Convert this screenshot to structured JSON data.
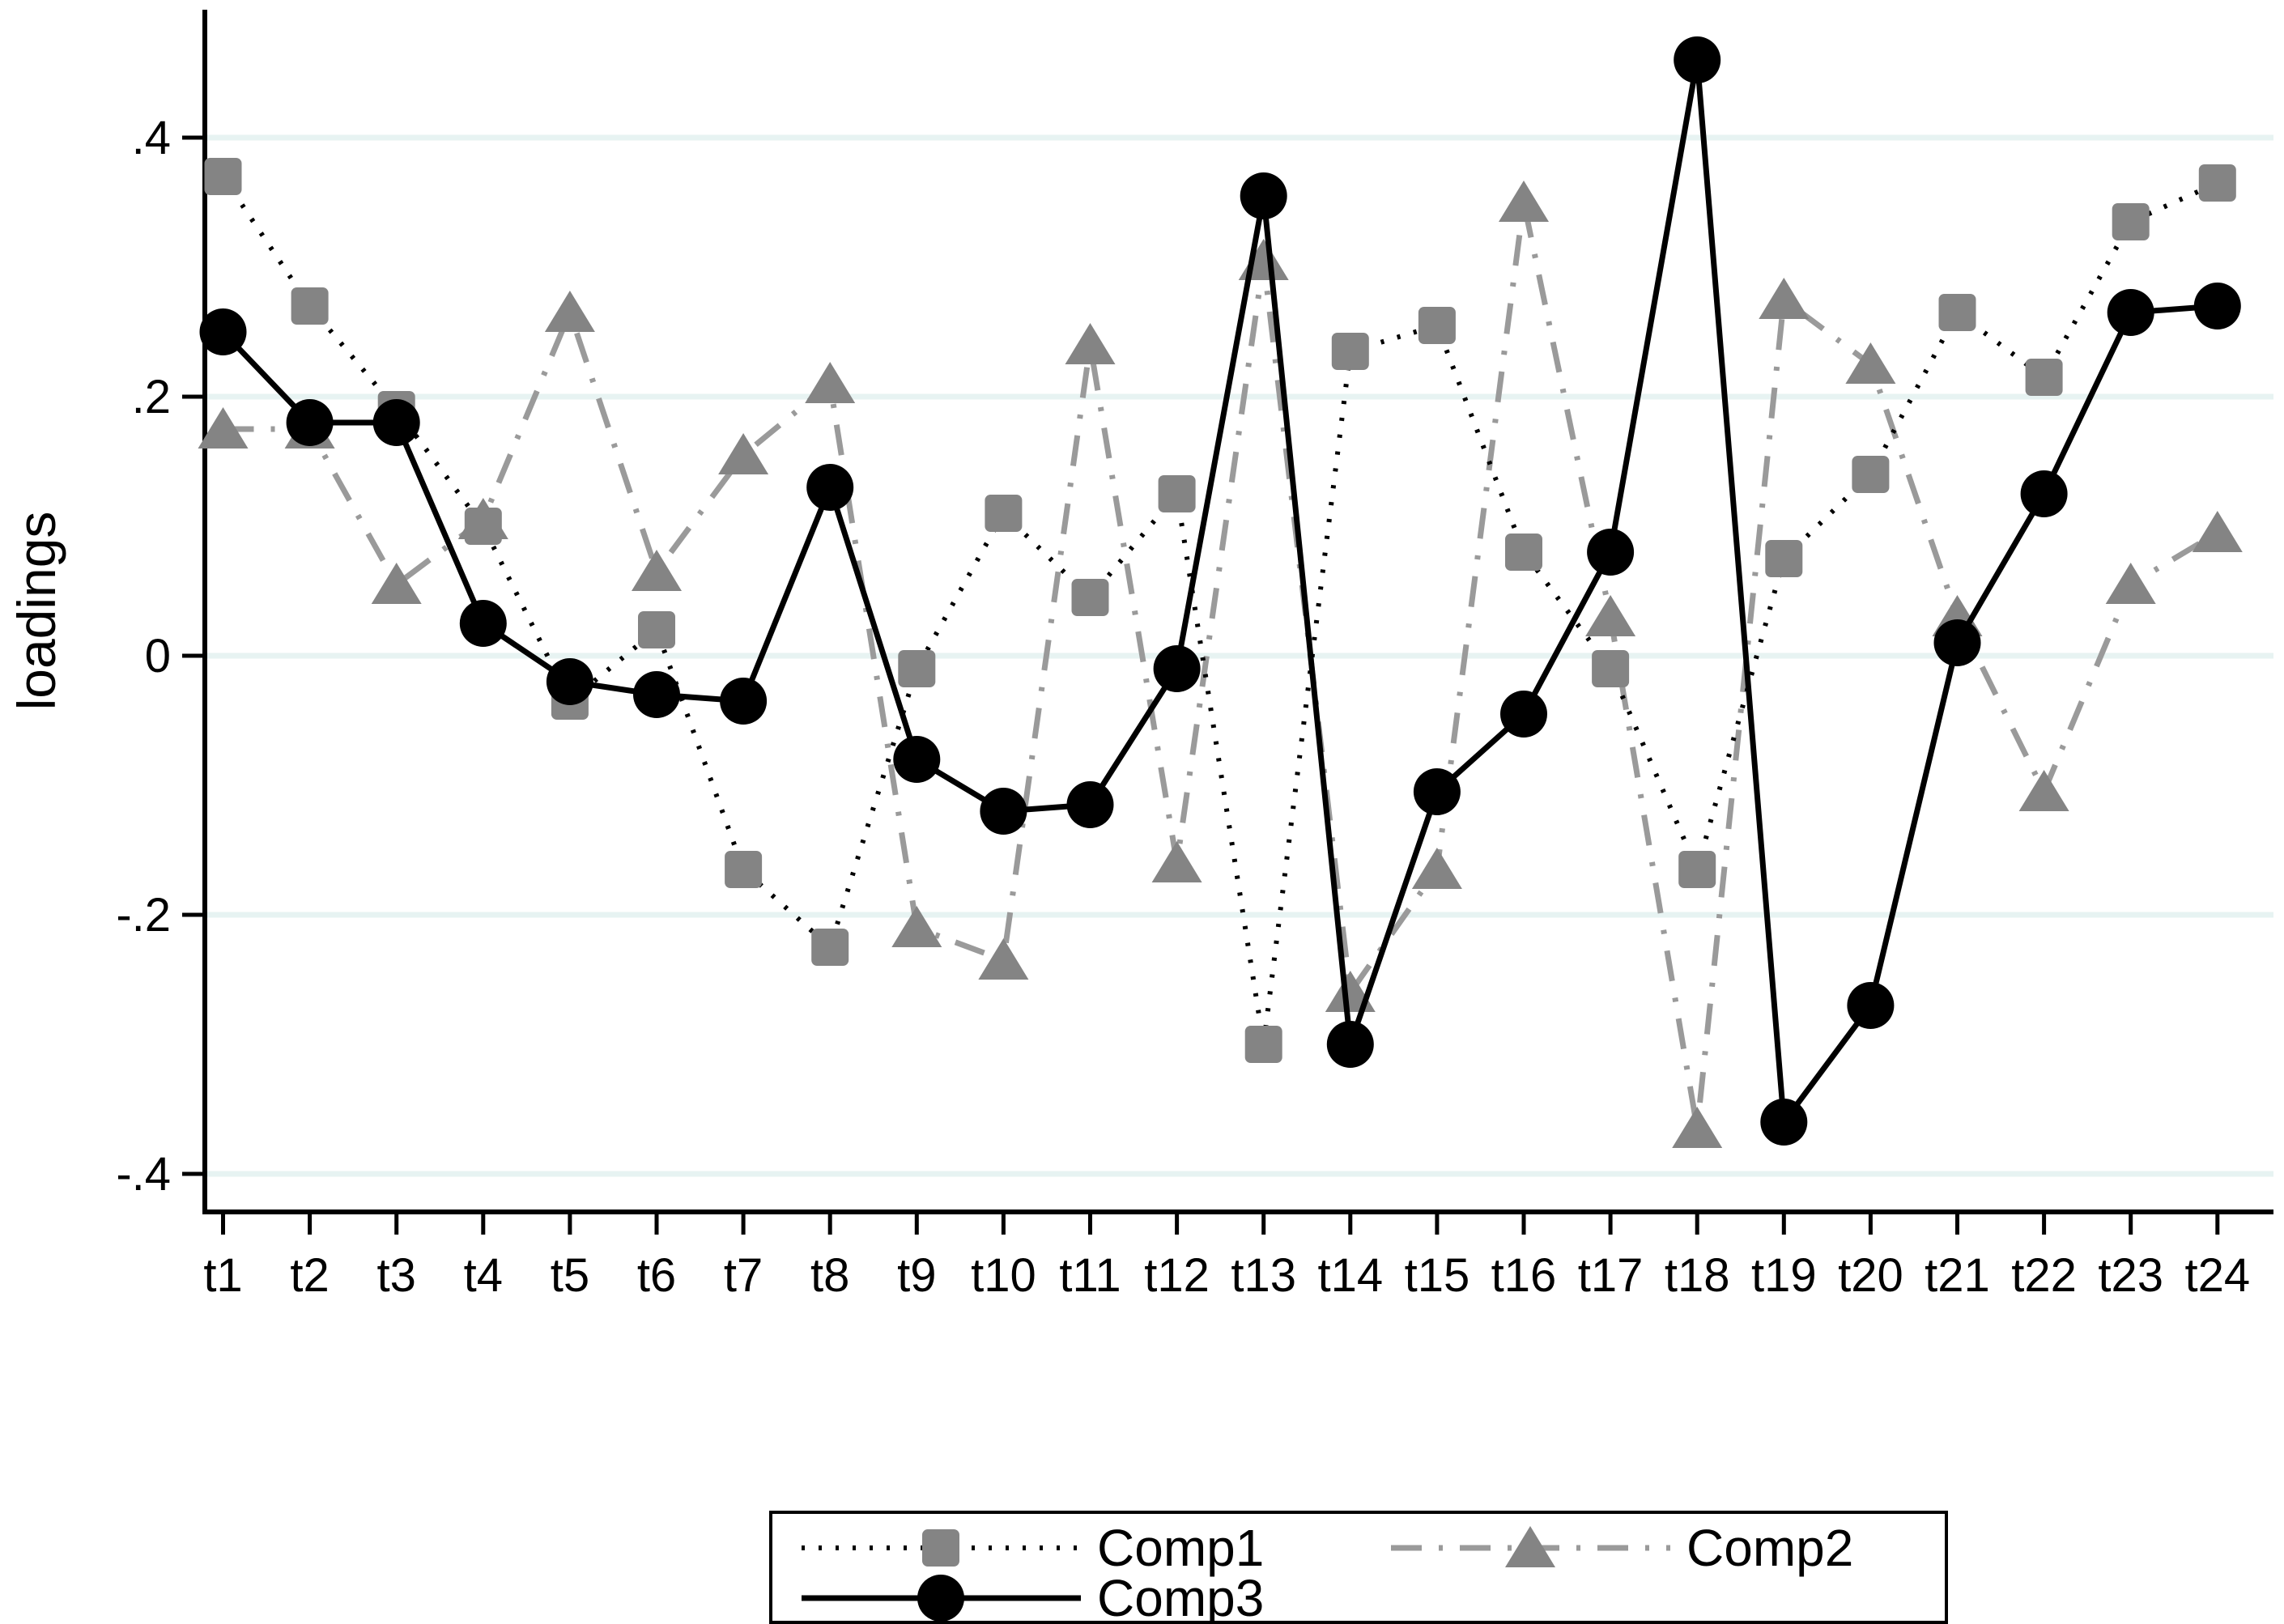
{
  "figure": {
    "background": "#ffffff",
    "plot_border_color": "#000000",
    "gridline_color": "#e7f3f2"
  },
  "y_axis": {
    "title": "loadings",
    "tick_labels": [
      ".4",
      ".2",
      "0",
      "-.2",
      "-.4"
    ],
    "tick_values": [
      0.4,
      0.2,
      0,
      -0.2,
      -0.4
    ]
  },
  "x_axis": {
    "tick_count": 24
  },
  "legend": {
    "entries": [
      {
        "label": "Comp1",
        "series": 0
      },
      {
        "label": "Comp2",
        "series": 1
      },
      {
        "label": "Comp3",
        "series": 2
      }
    ]
  },
  "chart_data": {
    "type": "line",
    "title": "",
    "xlabel": "",
    "ylabel": "loadings",
    "ylim": [
      -0.45,
      0.49
    ],
    "grid": true,
    "gridline_values": [
      0.4,
      0.2,
      0,
      -0.2,
      -0.4
    ],
    "legend_position": "bottom",
    "categories": [
      "t1",
      "t2",
      "t3",
      "t4",
      "t5",
      "t6",
      "t7",
      "t8",
      "t9",
      "t10",
      "t11",
      "t12",
      "t13",
      "t14",
      "t15",
      "t16",
      "t17",
      "t18",
      "t19",
      "t20",
      "t21",
      "t22",
      "t23",
      "t24"
    ],
    "series": [
      {
        "name": "Comp1",
        "marker": "square",
        "line_style": "dotted",
        "line_color": "#000000",
        "marker_color": "#848484",
        "values": [
          0.37,
          0.27,
          0.19,
          0.1,
          -0.035,
          0.02,
          -0.165,
          -0.225,
          -0.01,
          0.11,
          0.045,
          0.125,
          -0.3,
          0.235,
          0.255,
          0.08,
          -0.01,
          -0.165,
          0.075,
          0.14,
          0.265,
          0.215,
          0.335,
          0.365
        ]
      },
      {
        "name": "Comp2",
        "marker": "triangle",
        "line_style": "dash-dot",
        "line_color": "#9a9a9a",
        "marker_color": "#848484",
        "values": [
          0.175,
          0.175,
          0.055,
          0.105,
          0.265,
          0.065,
          0.155,
          0.21,
          -0.21,
          -0.235,
          0.24,
          -0.16,
          0.305,
          -0.26,
          -0.165,
          0.35,
          0.03,
          -0.365,
          0.275,
          0.225,
          0.03,
          -0.105,
          0.055,
          0.095
        ]
      },
      {
        "name": "Comp3",
        "marker": "circle",
        "line_style": "solid",
        "line_color": "#000000",
        "marker_color": "#000000",
        "values": [
          0.25,
          0.18,
          0.18,
          0.025,
          -0.02,
          -0.03,
          -0.035,
          0.13,
          -0.08,
          -0.12,
          -0.115,
          -0.01,
          0.355,
          -0.3,
          -0.105,
          -0.045,
          0.08,
          0.46,
          -0.36,
          -0.27,
          0.01,
          0.125,
          0.265,
          0.27
        ]
      }
    ]
  }
}
